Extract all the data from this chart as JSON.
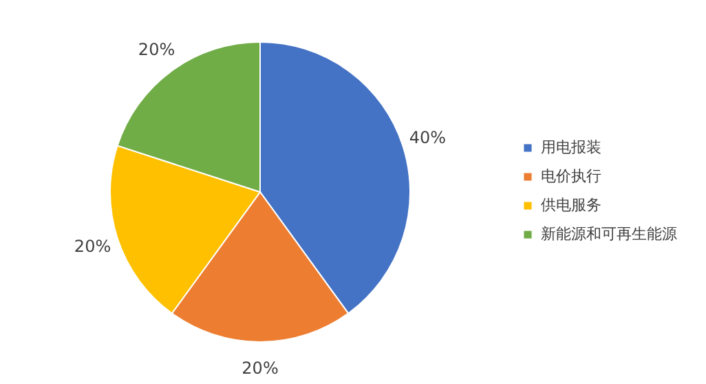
{
  "chart_data": {
    "type": "pie",
    "categories": [
      "用电报装",
      "电价执行",
      "供电服务",
      "新能源和可再生能源"
    ],
    "values": [
      40,
      20,
      20,
      20
    ],
    "colors": [
      "#4472c4",
      "#ed7d31",
      "#ffc000",
      "#70ad47"
    ],
    "value_labels": [
      "40%",
      "20%",
      "20%",
      "20%"
    ],
    "legend": "right"
  }
}
